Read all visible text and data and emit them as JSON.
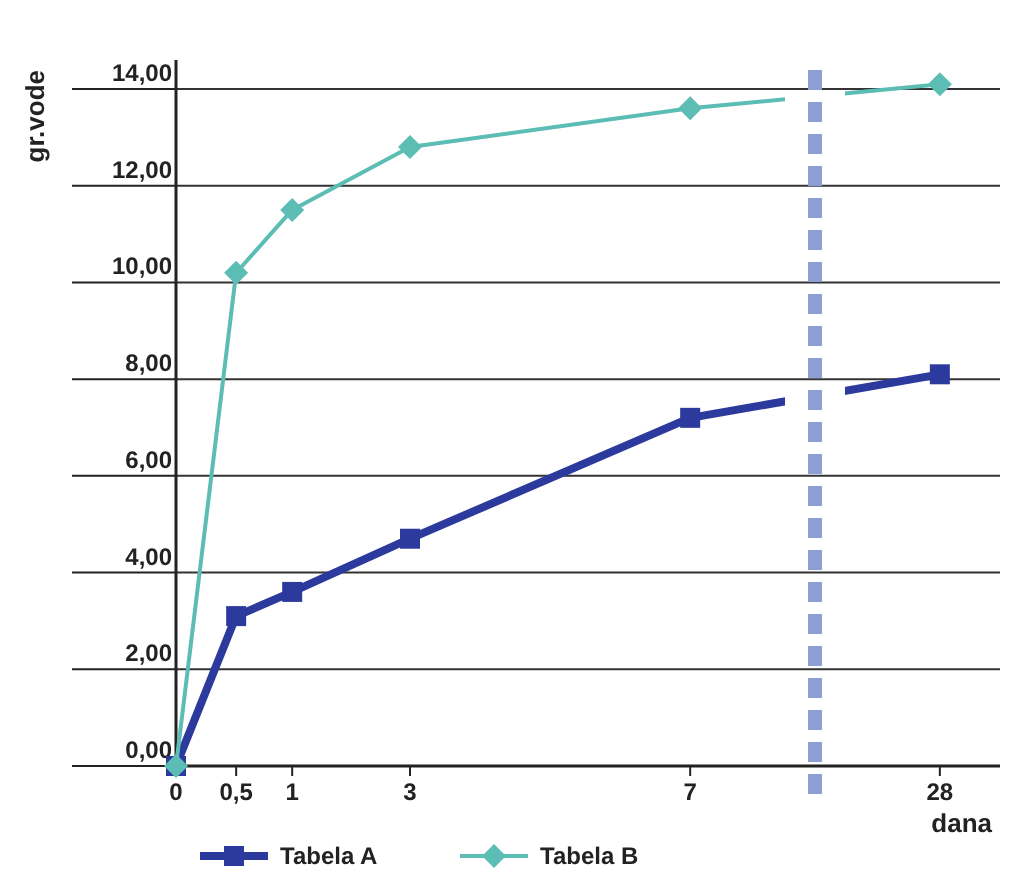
{
  "chart_data": {
    "type": "line",
    "ylabel": "gr.vode",
    "xlabel": "dana",
    "categories": [
      "0",
      "0,5",
      "1",
      "3",
      "7",
      "28"
    ],
    "series": [
      {
        "name": "Tabela A",
        "color": "#2b3a9c",
        "marker": "square",
        "values": [
          0,
          3.1,
          3.6,
          4.7,
          7.2,
          8.1
        ]
      },
      {
        "name": "Tabela B",
        "color": "#5cbdb5",
        "marker": "diamond",
        "values": [
          0,
          10.2,
          11.5,
          12.8,
          13.6,
          14.1
        ]
      }
    ],
    "ylim": [
      0,
      14.6
    ],
    "yticks": [
      {
        "value": 0,
        "label": "0,00"
      },
      {
        "value": 2,
        "label": "2,00"
      },
      {
        "value": 4,
        "label": "4,00"
      },
      {
        "value": 6,
        "label": "6,00"
      },
      {
        "value": 8,
        "label": "8,00"
      },
      {
        "value": 10,
        "label": "10,00"
      },
      {
        "value": 12,
        "label": "12,00"
      },
      {
        "value": 14,
        "label": "14,00"
      }
    ],
    "grid": "y",
    "legend": "bottom",
    "line_style": "solid"
  }
}
